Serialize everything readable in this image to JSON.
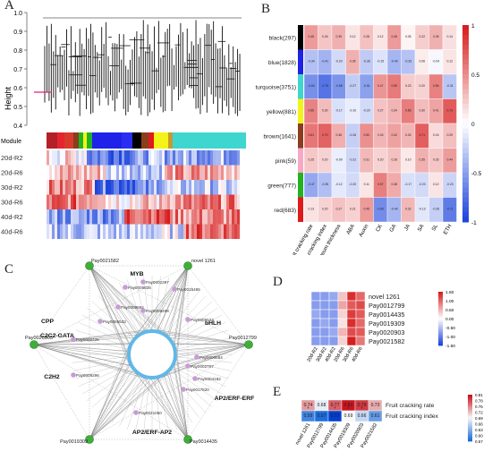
{
  "panels": {
    "A": {
      "letter": "A",
      "ylabel": "Height",
      "yticks": [
        "1.0",
        "0.9",
        "0.8",
        "0.7",
        "0.6",
        "0.5",
        "0.4"
      ],
      "module_label": "Module",
      "rows": [
        "20d-R2",
        "20d-R6",
        "30d-R2",
        "30d-R6",
        "40d-R2",
        "40d-R6"
      ]
    },
    "B": {
      "letter": "B",
      "modules": [
        "black(297)",
        "blue(1828)",
        "turquoise(3751)",
        "yellow(881)",
        "brown(1641)",
        "pink(59)",
        "green(777)",
        "red(683)"
      ],
      "module_colors": [
        "#000000",
        "#1f22e8",
        "#3fd6d0",
        "#f3f31a",
        "#8b3d1f",
        "#f7a9c3",
        "#22b322",
        "#e01a1a"
      ],
      "traits": [
        "Fruit cracking rate",
        "Fruit cracking index",
        "Stratum corneum thickness",
        "ABA",
        "Auxin",
        "CK",
        "GA",
        "JA",
        "SA",
        "SL",
        "ETH"
      ],
      "scale_labels": [
        "1",
        "0.5",
        "0",
        "-0.5",
        "-1"
      ]
    },
    "C": {
      "letter": "C",
      "tf_labels": [
        "MYB",
        "bHLH",
        "AP2/ERF-ERF",
        "AP2/ERF-AP2",
        "C2H2",
        "C2C2-GATA",
        "CPP"
      ],
      "hub_labels": [
        "Pay0021582",
        "novel 1261",
        "Pay0012799",
        "Pay0014435",
        "Pay0019309",
        "Pay0020903"
      ],
      "inner_labels": [
        "Pay0002397",
        "Pay0006826",
        "Pay0015465",
        "Pay0009864",
        "Pay0006498",
        "Pay0005523",
        "Pay0005533",
        "Pay0000425",
        "Pay0002707",
        "Pay0004182",
        "Pay0017820",
        "Pay0021050",
        "Pay0009296",
        "Pay0006684"
      ]
    },
    "D": {
      "letter": "D",
      "genes": [
        "novel 1261",
        "Pay0012799",
        "Pay0014435",
        "Pay0019309",
        "Pay0020903",
        "Pay0021582"
      ],
      "samples": [
        "20d-R2",
        "30d-R2",
        "40d-R2",
        "20d-R6",
        "30d-R6",
        "40d-R6"
      ],
      "scale_labels": [
        "1.50",
        "1.00",
        "0.50",
        "0.00",
        "-0.50",
        "-1.00",
        "-1.50"
      ]
    },
    "E": {
      "letter": "E",
      "traits": [
        "Fruit cracking rate",
        "Fruit cracking index"
      ],
      "genes": [
        "novel 1261",
        "Pay0012799",
        "Pay0014435",
        "Pay0019309",
        "Pay0020903",
        "Pay0021582"
      ],
      "values": [
        [
          "0.74",
          "0.68",
          "0.77",
          "0.81",
          "0.79",
          "0.73"
        ],
        [
          "0.59",
          "0.57",
          "0.53",
          "0.69",
          "0.66",
          "0.61"
        ]
      ],
      "marks": [
        [
          "*",
          "",
          "*",
          "*",
          "*",
          ""
        ],
        [
          "",
          "",
          "",
          "",
          "",
          ""
        ]
      ],
      "scale_labels": [
        "0.81",
        "0.78",
        "0.75",
        "0.72",
        "0.69",
        "0.66",
        "0.63",
        "0.60",
        "0.57"
      ]
    }
  },
  "chart_data": [
    {
      "type": "heatmap",
      "title": "",
      "rows": [
        "black(297)",
        "blue(1828)",
        "turquoise(3751)",
        "yellow(881)",
        "brown(1641)",
        "pink(59)",
        "green(777)",
        "red(683)"
      ],
      "columns": [
        "Fruit cracking rate",
        "Fruit cracking index",
        "Stratum corneum thickness",
        "ABA",
        "Auxin",
        "CK",
        "GA",
        "JA",
        "SA",
        "SL",
        "ETH"
      ],
      "values": [
        [
          0.45,
          0.26,
          0.35,
          0.12,
          0.28,
          0.12,
          0.45,
          0.05,
          0.22,
          0.35,
          0.14
        ],
        [
          -0.34,
          -0.41,
          -0.2,
          0.35,
          -0.28,
          -0.15,
          -0.4,
          -0.33,
          0.08,
          -0.04,
          0.12
        ],
        [
          -0.6,
          -0.75,
          -0.58,
          -0.27,
          -0.51,
          0.47,
          0.59,
          0.23,
          0.2,
          0.56,
          -0.31
        ],
        [
          0.55,
          0.3,
          -0.17,
          -0.1,
          -0.2,
          0.27,
          0.34,
          0.58,
          0.3,
          0.41,
          0.73
        ],
        [
          0.61,
          0.7,
          0.36,
          -0.26,
          0.5,
          0.33,
          0.42,
          0.33,
          0.71,
          0.16,
          0.29
        ],
        [
          0.25,
          0.2,
          -0.09,
          -0.22,
          0.31,
          0.2,
          0.28,
          0.1,
          0.35,
          0.26,
          0.44
        ],
        [
          -0.47,
          -0.35,
          -0.12,
          -0.2,
          0.11,
          0.57,
          0.38,
          -0.17,
          -0.2,
          0.12,
          -0.23
        ],
        [
          0.13,
          0.2,
          0.27,
          0.21,
          0.45,
          -0.62,
          -0.4,
          0.32,
          -0.13,
          -0.26,
          -0.71
        ]
      ],
      "color_range": [
        -1,
        1
      ]
    },
    {
      "type": "heatmap",
      "title": "",
      "rows": [
        "novel 1261",
        "Pay0012799",
        "Pay0014435",
        "Pay0019309",
        "Pay0020903",
        "Pay0021582"
      ],
      "columns": [
        "20d-R2",
        "30d-R2",
        "40d-R2",
        "20d-R6",
        "30d-R6",
        "40d-R6"
      ],
      "values": [
        [
          -0.8,
          -0.8,
          -0.7,
          0.4,
          1.4,
          1.0
        ],
        [
          -0.8,
          -0.8,
          -0.8,
          0.6,
          1.1,
          1.2
        ],
        [
          -0.7,
          -0.8,
          -0.8,
          0.3,
          1.3,
          1.1
        ],
        [
          -0.8,
          -0.7,
          -0.8,
          0.2,
          1.4,
          1.0
        ],
        [
          -0.8,
          -0.8,
          -0.7,
          0.5,
          1.2,
          1.1
        ],
        [
          -0.8,
          -0.8,
          -0.8,
          0.3,
          1.5,
          0.9
        ]
      ],
      "color_range": [
        -1.5,
        1.5
      ]
    },
    {
      "type": "heatmap",
      "title": "",
      "rows": [
        "Fruit cracking rate",
        "Fruit cracking index"
      ],
      "columns": [
        "novel 1261",
        "Pay0012799",
        "Pay0014435",
        "Pay0019309",
        "Pay0020903",
        "Pay0021582"
      ],
      "values": [
        [
          0.74,
          0.68,
          0.77,
          0.81,
          0.79,
          0.73
        ],
        [
          0.59,
          0.57,
          0.53,
          0.69,
          0.66,
          0.61
        ]
      ],
      "color_range": [
        0.57,
        0.81
      ]
    }
  ]
}
